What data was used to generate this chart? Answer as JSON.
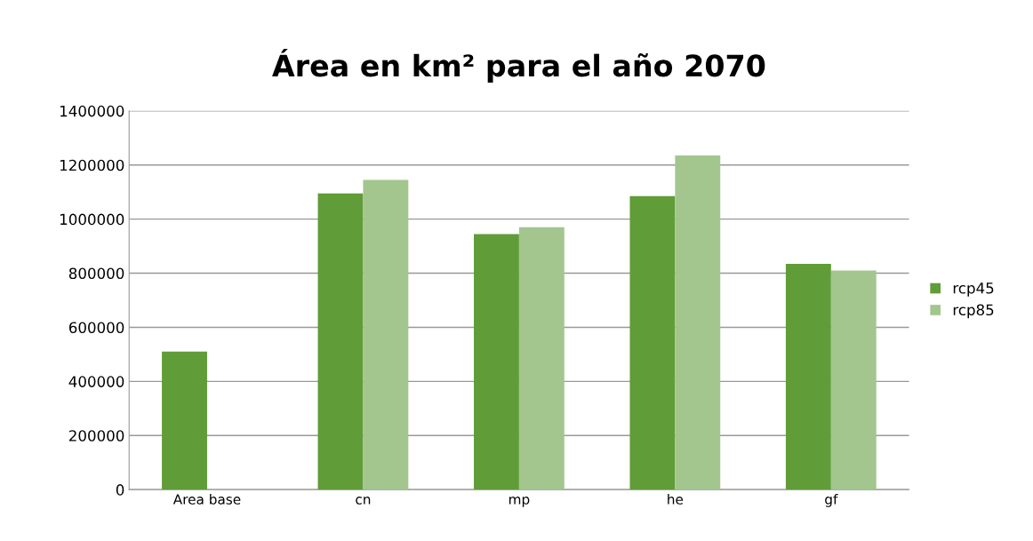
{
  "chart_data": {
    "type": "bar",
    "title": "Área en km² para el año 2070",
    "categories": [
      "Area base",
      "cn",
      "mp",
      "he",
      "gf"
    ],
    "series": [
      {
        "name": "rcp45",
        "color": "#609c38",
        "values": [
          510000,
          1095000,
          945000,
          1085000,
          835000
        ]
      },
      {
        "name": "rcp85",
        "color": "#a3c68f",
        "values": [
          null,
          1145000,
          970000,
          1235000,
          810000
        ]
      }
    ],
    "ylim": [
      0,
      1400000
    ],
    "yticks": [
      0,
      200000,
      400000,
      600000,
      800000,
      1000000,
      1200000,
      1400000
    ],
    "grid": "y",
    "legend": "right"
  }
}
